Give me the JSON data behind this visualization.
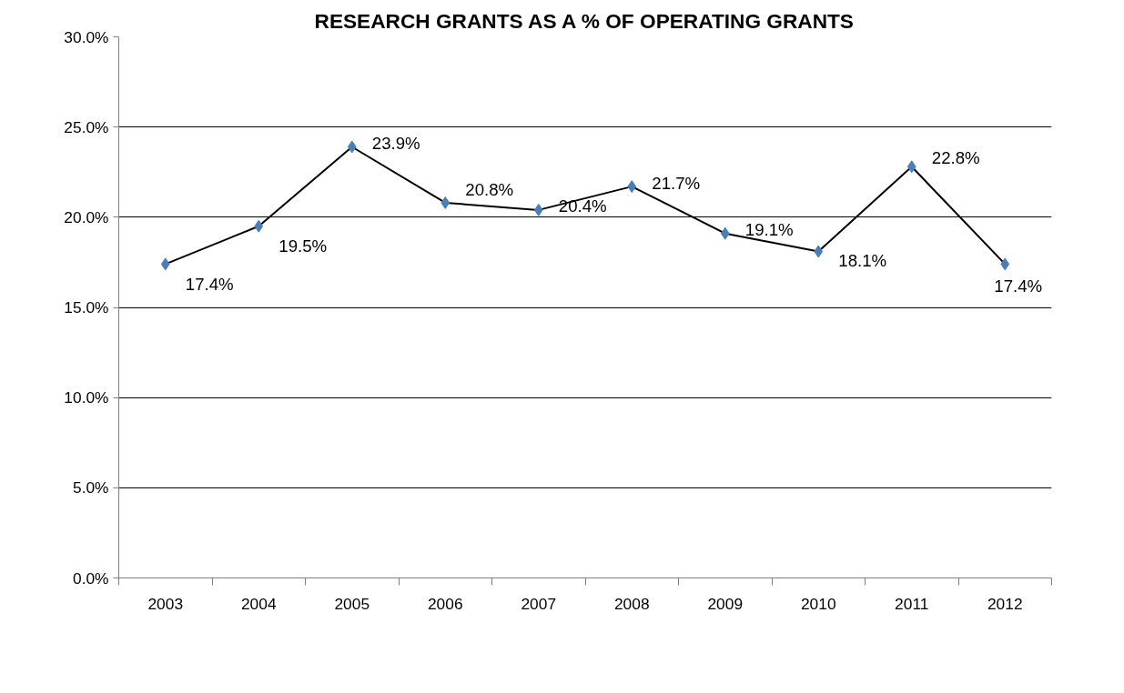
{
  "chart_data": {
    "type": "line",
    "title": "RESEARCH GRANTS AS A % OF OPERATING GRANTS",
    "categories": [
      "2003",
      "2004",
      "2005",
      "2006",
      "2007",
      "2008",
      "2009",
      "2010",
      "2011",
      "2012"
    ],
    "series": [
      {
        "color": "#4a7ebb",
        "values": [
          17.4,
          19.5,
          23.9,
          20.8,
          20.4,
          21.7,
          19.1,
          18.1,
          22.8,
          17.4
        ],
        "value_labels": [
          "17.4%",
          "19.5%",
          "23.9%",
          "20.8%",
          "20.4%",
          "21.7%",
          "19.1%",
          "18.1%",
          "22.8%",
          "17.4%"
        ]
      }
    ],
    "ylim": [
      0,
      30
    ],
    "yticks": [
      {
        "value": 0,
        "label": "0.0%"
      },
      {
        "value": 5,
        "label": "5.0%"
      },
      {
        "value": 10,
        "label": "10.0%"
      },
      {
        "value": 15,
        "label": "15.0%"
      },
      {
        "value": 20,
        "label": "20.0%"
      },
      {
        "value": 25,
        "label": "25.0%"
      },
      {
        "value": 30,
        "label": "30.0%"
      }
    ],
    "grid": "y",
    "marker": "diamond",
    "line_style": "solid"
  }
}
